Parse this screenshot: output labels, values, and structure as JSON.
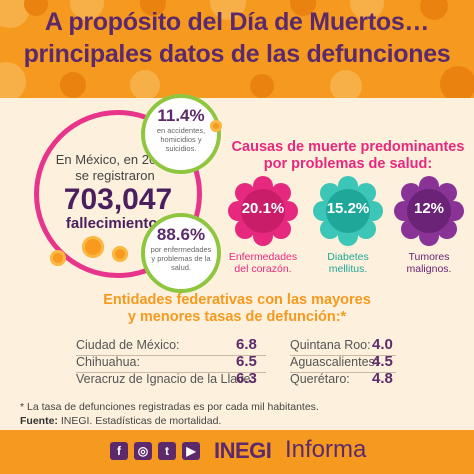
{
  "header": {
    "title_line1": "A propósito del Día de Muertos…",
    "title_line2": "principales datos de las defunciones"
  },
  "summary": {
    "text_line1": "En México, en 2017,",
    "text_line2": "se registraron",
    "total": "703,047",
    "total_label": "fallecimientos."
  },
  "bubbles": {
    "top": {
      "pct": "11.4%",
      "desc": "en accidentes, homicidios y suicidios."
    },
    "bottom": {
      "pct": "88.6%",
      "desc": "por enfermedades y problemas de la salud."
    }
  },
  "causes": {
    "title_line1": "Causas de muerte predominantes",
    "title_line2": "por problemas de salud:",
    "items": [
      {
        "value": "20.1%",
        "label_line1": "Enfermedades",
        "label_line2": "del corazón.",
        "color": "#e6297e",
        "label_color": "#e6297e"
      },
      {
        "value": "15.2%",
        "label_line1": "Diabetes",
        "label_line2": "mellitus.",
        "color": "#1fb7a8",
        "label_color": "#1fa89a"
      },
      {
        "value": "12%",
        "label_line1": "Tumores",
        "label_line2": "malignos.",
        "color": "#6a2377",
        "label_color": "#6a2377"
      }
    ]
  },
  "states": {
    "title_line1": "Entidades federativas con las mayores",
    "title_line2": "y menores tasas de defunción:*",
    "highest": [
      {
        "name": "Ciudad de México:",
        "value": "6.8"
      },
      {
        "name": "Chihuahua:",
        "value": "6.5"
      },
      {
        "name": "Veracruz de Ignacio de la Llave:",
        "value": "6.3"
      }
    ],
    "lowest": [
      {
        "name": "Quintana Roo:",
        "value": "4.0"
      },
      {
        "name": "Aguascalientes:",
        "value": "4.5"
      },
      {
        "name": "Querétaro:",
        "value": "4.8"
      }
    ]
  },
  "footnote": {
    "note": "* La tasa de defunciones registradas es por cada mil habitantes.",
    "source_label": "Fuente:",
    "source_text": "INEGI. Estadísticas de mortalidad."
  },
  "footer": {
    "social_icons": [
      "facebook-icon",
      "instagram-icon",
      "twitter-icon",
      "youtube-icon"
    ],
    "brand": "INEGI",
    "brand_sub": "Informa"
  },
  "colors": {
    "orange": "#f59a1f",
    "purple": "#5c2a6b",
    "pink": "#e6297e",
    "green": "#8ec63f",
    "teal": "#1fb7a8",
    "cream": "#fdf0dc"
  }
}
